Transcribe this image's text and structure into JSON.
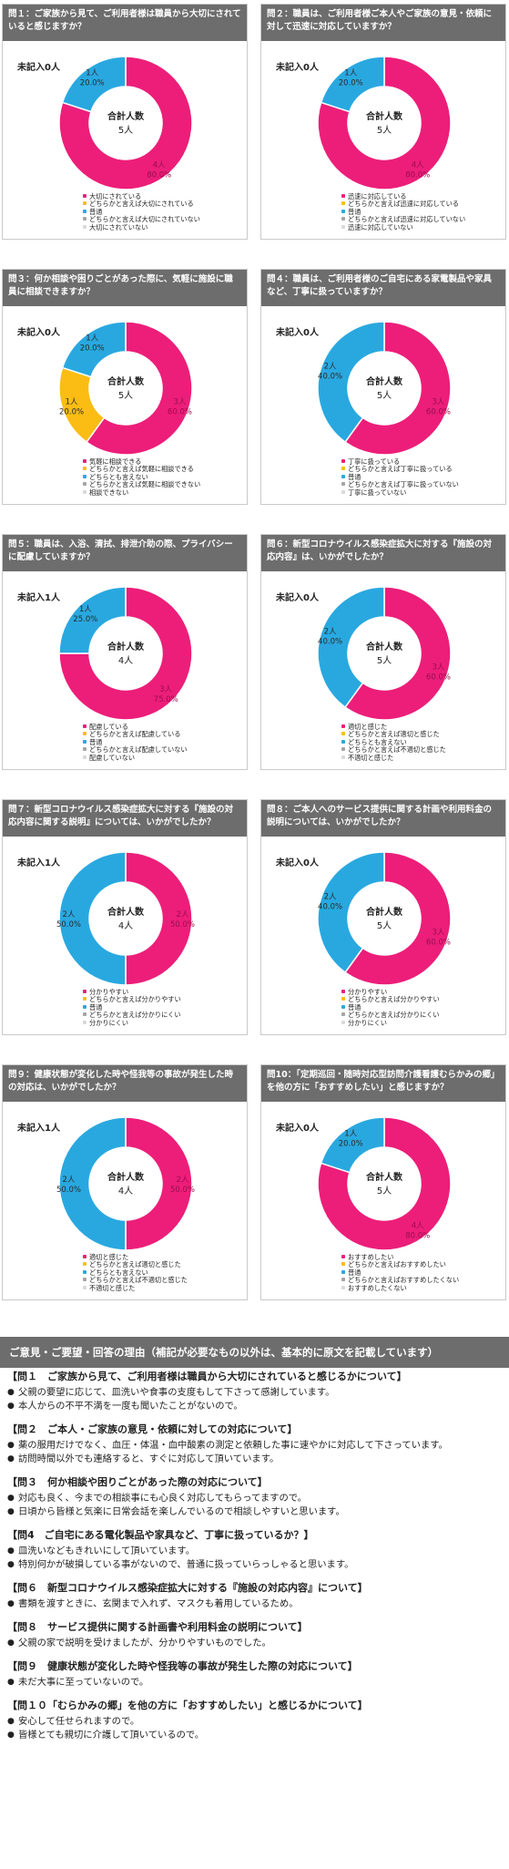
{
  "colors": {
    "pink": "#ec1e79",
    "yellow": "#fbbd13",
    "blue": "#29a8e0",
    "gray": "#a5a5a5",
    "light_gray": "#d9d9d9",
    "header_bg": "#6d6d6d"
  },
  "center_label": "合計人数",
  "unanswered_prefix": "未記入",
  "chart_data": [
    {
      "type": "donut",
      "title": "問１：ご家族から見て、ご利用者様は職員から大切にされていると感じますか？",
      "categories": [
        "大切にされている",
        "どちらかと言えば大切にされている",
        "普通",
        "どちらかと言えば大切にされていない",
        "大切にされていない"
      ],
      "counts": [
        4,
        0,
        1,
        0,
        0
      ],
      "percents": [
        "80.0%",
        "0.0%",
        "20.0%",
        "0.0%",
        "0.0%"
      ],
      "total": "5人",
      "unanswered": "0人"
    },
    {
      "type": "donut",
      "title": "問２：職員は、ご利用者様ご本人やご家族の意見・依頼に対して迅速に対応していますか？",
      "categories": [
        "迅速に対応している",
        "どちらかと言えば迅速に対応している",
        "普通",
        "どちらかと言えば迅速に対応していない",
        "迅速に対応していない"
      ],
      "counts": [
        4,
        0,
        1,
        0,
        0
      ],
      "percents": [
        "80.0%",
        "0.0%",
        "20.0%",
        "0.0%",
        "0.0%"
      ],
      "total": "5人",
      "unanswered": "0人"
    },
    {
      "type": "donut",
      "title": "問３：何か相談や困りごとがあった際に、気軽に施設に職員に相談できますか？",
      "categories": [
        "気軽に相談できる",
        "どちらかと言えば気軽に相談できる",
        "どちらとも言えない",
        "どちらかと言えば気軽に相談できない",
        "相談できない"
      ],
      "counts": [
        3,
        1,
        1,
        0,
        0
      ],
      "percents": [
        "60.0%",
        "20.0%",
        "20.0%",
        "0.0%",
        "0.0%"
      ],
      "total": "5人",
      "unanswered": "0人"
    },
    {
      "type": "donut",
      "title": "問４：職員は、ご利用者様のご自宅にある家電製品や家具など、丁寧に扱っていますか？",
      "categories": [
        "丁寧に扱っている",
        "どちらかと言えば丁寧に扱っている",
        "普通",
        "どちらかと言えば丁寧に扱っていない",
        "丁寧に扱っていない"
      ],
      "counts": [
        3,
        0,
        2,
        0,
        0
      ],
      "percents": [
        "60.0%",
        "0.0%",
        "40.0%",
        "0.0%",
        "0.0%"
      ],
      "total": "5人",
      "unanswered": "0人"
    },
    {
      "type": "donut",
      "title": "問５：職員は、入浴、清拭、排泄介助の際、プライバシーに配慮していますか？",
      "categories": [
        "配慮している",
        "どちらかと言えば配慮している",
        "普通",
        "どちらかと言えば配慮していない",
        "配慮していない"
      ],
      "counts": [
        3,
        0,
        1,
        0,
        0
      ],
      "percents": [
        "75.0%",
        "0.0%",
        "25.0%",
        "0.0%",
        "0.0%"
      ],
      "total": "4人",
      "unanswered": "1人"
    },
    {
      "type": "donut",
      "title": "問６：新型コロナウイルス感染症拡大に対する『施設の対応内容』は、いかがでしたか？",
      "categories": [
        "適切と感じた",
        "どちらかと言えば適切と感じた",
        "どちらとも言えない",
        "どちらかと言えば不適切と感じた",
        "不適切と感じた"
      ],
      "counts": [
        3,
        0,
        2,
        0,
        0
      ],
      "percents": [
        "60.0%",
        "0.0%",
        "40.0%",
        "0.0%",
        "0.0%"
      ],
      "total": "5人",
      "unanswered": "0人"
    },
    {
      "type": "donut",
      "title": "問７：新型コロナウイルス感染症拡大に対する『施設の対応内容に関する説明』については、いかがでしたか？",
      "categories": [
        "分かりやすい",
        "どちらかと言えば分かりやすい",
        "普通",
        "どちらかと言えば分かりにくい",
        "分かりにくい"
      ],
      "counts": [
        2,
        0,
        2,
        0,
        0
      ],
      "percents": [
        "50.0%",
        "0.0%",
        "50.0%",
        "0.0%",
        "0.0%"
      ],
      "total": "4人",
      "unanswered": "1人"
    },
    {
      "type": "donut",
      "title": "問８：ご本人へのサービス提供に関する計画や利用料金の説明については、いかがでしたか？",
      "categories": [
        "分かりやすい",
        "どちらかと言えば分かりやすい",
        "普通",
        "どちらかと言えば分かりにくい",
        "分かりにくい"
      ],
      "counts": [
        3,
        0,
        2,
        0,
        0
      ],
      "percents": [
        "60.0%",
        "0.0%",
        "40.0%",
        "0.0%",
        "0.0%"
      ],
      "total": "5人",
      "unanswered": "0人"
    },
    {
      "type": "donut",
      "title": "問９：健康状態が変化した時や怪我等の事故が発生した時の対応は、いかがでしたか？",
      "categories": [
        "適切と感じた",
        "どちらかと言えば適切と感じた",
        "どちらとも言えない",
        "どちらかと言えば不適切と感じた",
        "不適切と感じた"
      ],
      "counts": [
        2,
        0,
        2,
        0,
        0
      ],
      "percents": [
        "50.0%",
        "0.0%",
        "50.0%",
        "0.0%",
        "0.0%"
      ],
      "total": "4人",
      "unanswered": "1人"
    },
    {
      "type": "donut",
      "title": "問10：「定期巡回・随時対応型訪問介護看護むらかみの郷」を他の方に「おすすめしたい」と感じますか？",
      "categories": [
        "おすすめしたい",
        "どちらかと言えばおすすめしたい",
        "普通",
        "どちらかと言えばおすすめしたくない",
        "おすすめしたくない"
      ],
      "counts": [
        4,
        0,
        1,
        0,
        0
      ],
      "percents": [
        "80.0%",
        "0.0%",
        "20.0%",
        "0.0%",
        "0.0%"
      ],
      "total": "5人",
      "unanswered": "0人"
    }
  ],
  "comments": {
    "title": "ご意見・ご要望・回答の理由（補記が必要なもの以外は、基本的に原文を記載しています）",
    "sections": [
      {
        "heading": "【問１　ご家族から見て、ご利用者様は職員から大切にされていると感じるかについて】",
        "items": [
          "父親の要望に応じて、皿洗いや食事の支度もして下さって感謝しています。",
          "本人からの不平不満を一度も聞いたことがないので。"
        ]
      },
      {
        "heading": "【問２　ご本人・ご家族の意見・依頼に対しての対応について】",
        "items": [
          "薬の服用だけでなく、血圧・体温・血中酸素の測定と依頼した事に速やかに対応して下さっています。",
          "訪問時間以外でも連絡すると、すぐに対応して頂いています。"
        ]
      },
      {
        "heading": "【問３　何か相談や困りごとがあった際の対応について】",
        "items": [
          "対応も良く、今までの相談事にも心良く対応してもらってますので。",
          "日頃から皆様と気楽に日常会話を楽しんでいるので相談しやすいと思います。"
        ]
      },
      {
        "heading": "【問4　ご自宅にある電化製品や家具など、丁寧に扱っているか？】",
        "items": [
          "皿洗いなどもきれいにして頂いています。",
          "特別何かが破損している事がないので、普通に扱っていらっしゃると思います。"
        ]
      },
      {
        "heading": "【問６　新型コロナウイルス感染症拡大に対する『施設の対応内容』について】",
        "items": [
          "書類を渡すときに、玄関まで入れず、マスクも着用しているため。"
        ]
      },
      {
        "heading": "【問８　サービス提供に関する計画書や利用料金の説明について】",
        "items": [
          "父親の家で説明を受けましたが、分かりやすいものでした。"
        ]
      },
      {
        "heading": "【問９　健康状態が変化した時や怪我等の事故が発生した際の対応について】",
        "items": [
          "未だ大事に至っていないので。"
        ]
      },
      {
        "heading": "【問１０「むらかみの郷」を他の方に「おすすめしたい」と感じるかについて】",
        "items": [
          "安心して任せられますので。",
          "皆様とても親切に介護して頂いているので。"
        ]
      }
    ]
  }
}
